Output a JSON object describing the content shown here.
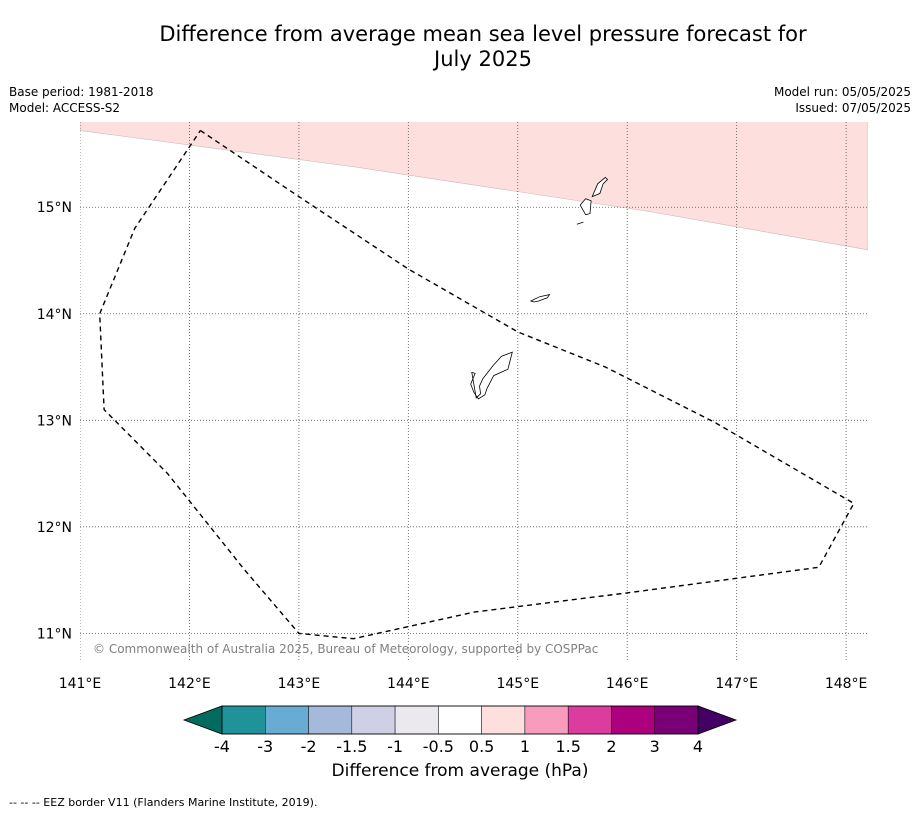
{
  "title_line1": "Difference from average mean sea level pressure forecast for",
  "title_line2": "July 2025",
  "meta": {
    "base_period": "Base period: 1981-2018",
    "model": "Model: ACCESS-S2",
    "model_run": "Model run: 05/05/2025",
    "issued": "Issued: 07/05/2025"
  },
  "map": {
    "lon_range": [
      141.0,
      148.2
    ],
    "lat_range": [
      10.75,
      15.8
    ],
    "x_ticks": [
      "141°E",
      "142°E",
      "143°E",
      "144°E",
      "145°E",
      "146°E",
      "147°E",
      "148°E"
    ],
    "y_ticks": [
      "11°N",
      "12°N",
      "13°N",
      "14°N",
      "15°N"
    ],
    "grid": "dotted",
    "copyright": "© Commonwealth of Australia 2025, Bureau of Meteorology, supported by COSPPac",
    "shaded_region_color": "#fddfde",
    "shaded_region_category": "0.5 to 1 hPa",
    "eez_border_style": "dashed",
    "eez_border": [
      [
        142.1,
        15.72
      ],
      [
        143.0,
        15.1
      ],
      [
        144.0,
        14.42
      ],
      [
        145.0,
        13.83
      ],
      [
        145.8,
        13.5
      ],
      [
        146.8,
        12.98
      ],
      [
        148.07,
        12.22
      ],
      [
        147.75,
        11.62
      ],
      [
        146.0,
        11.38
      ],
      [
        144.6,
        11.2
      ],
      [
        143.5,
        10.95
      ],
      [
        143.0,
        11.0
      ],
      [
        142.5,
        11.6
      ],
      [
        141.8,
        12.5
      ],
      [
        141.22,
        13.1
      ],
      [
        141.18,
        14.0
      ],
      [
        141.5,
        14.8
      ],
      [
        142.1,
        15.72
      ]
    ],
    "islands": {
      "guam": [
        [
          144.62,
          13.21
        ],
        [
          144.66,
          13.25
        ],
        [
          144.65,
          13.32
        ],
        [
          144.68,
          13.39
        ],
        [
          144.78,
          13.52
        ],
        [
          144.85,
          13.6
        ],
        [
          144.95,
          13.64
        ],
        [
          144.91,
          13.48
        ],
        [
          144.78,
          13.42
        ],
        [
          144.72,
          13.3
        ],
        [
          144.7,
          13.24
        ],
        [
          144.64,
          13.2
        ],
        [
          144.6,
          13.26
        ],
        [
          144.57,
          13.34
        ],
        [
          144.61,
          13.44
        ],
        [
          144.58,
          13.45
        ],
        [
          144.62,
          13.21
        ]
      ],
      "rota": [
        [
          145.12,
          14.12
        ],
        [
          145.2,
          14.16
        ],
        [
          145.29,
          14.18
        ],
        [
          145.27,
          14.15
        ],
        [
          145.19,
          14.12
        ],
        [
          145.15,
          14.11
        ],
        [
          145.12,
          14.12
        ]
      ],
      "tinian": [
        [
          145.57,
          15.02
        ],
        [
          145.62,
          15.08
        ],
        [
          145.67,
          15.06
        ],
        [
          145.66,
          14.94
        ],
        [
          145.62,
          14.93
        ],
        [
          145.57,
          15.02
        ]
      ],
      "saipan": [
        [
          145.68,
          15.1
        ],
        [
          145.73,
          15.22
        ],
        [
          145.8,
          15.28
        ],
        [
          145.82,
          15.26
        ],
        [
          145.78,
          15.22
        ],
        [
          145.75,
          15.13
        ],
        [
          145.68,
          15.1
        ]
      ],
      "aguijan": [
        [
          145.54,
          14.84
        ],
        [
          145.6,
          14.86
        ]
      ]
    }
  },
  "colorbar": {
    "title": "Difference from average (hPa)",
    "tick_labels": [
      "-4",
      "-3",
      "-2",
      "-1.5",
      "-1",
      "-0.5",
      "0.5",
      "1",
      "1.5",
      "2",
      "3",
      "4"
    ],
    "under_color": "#006b5e",
    "over_color": "#440064",
    "colors": [
      "#1f9399",
      "#68acd3",
      "#a5b9da",
      "#cfcfe6",
      "#ebe9ee",
      "#ffffff",
      "#fddfde",
      "#f89cbd",
      "#dc3c9e",
      "#ad007f",
      "#7a0078"
    ]
  },
  "footer": "--  --  -- EEZ border V11 (Flanders Marine Institute, 2019)."
}
